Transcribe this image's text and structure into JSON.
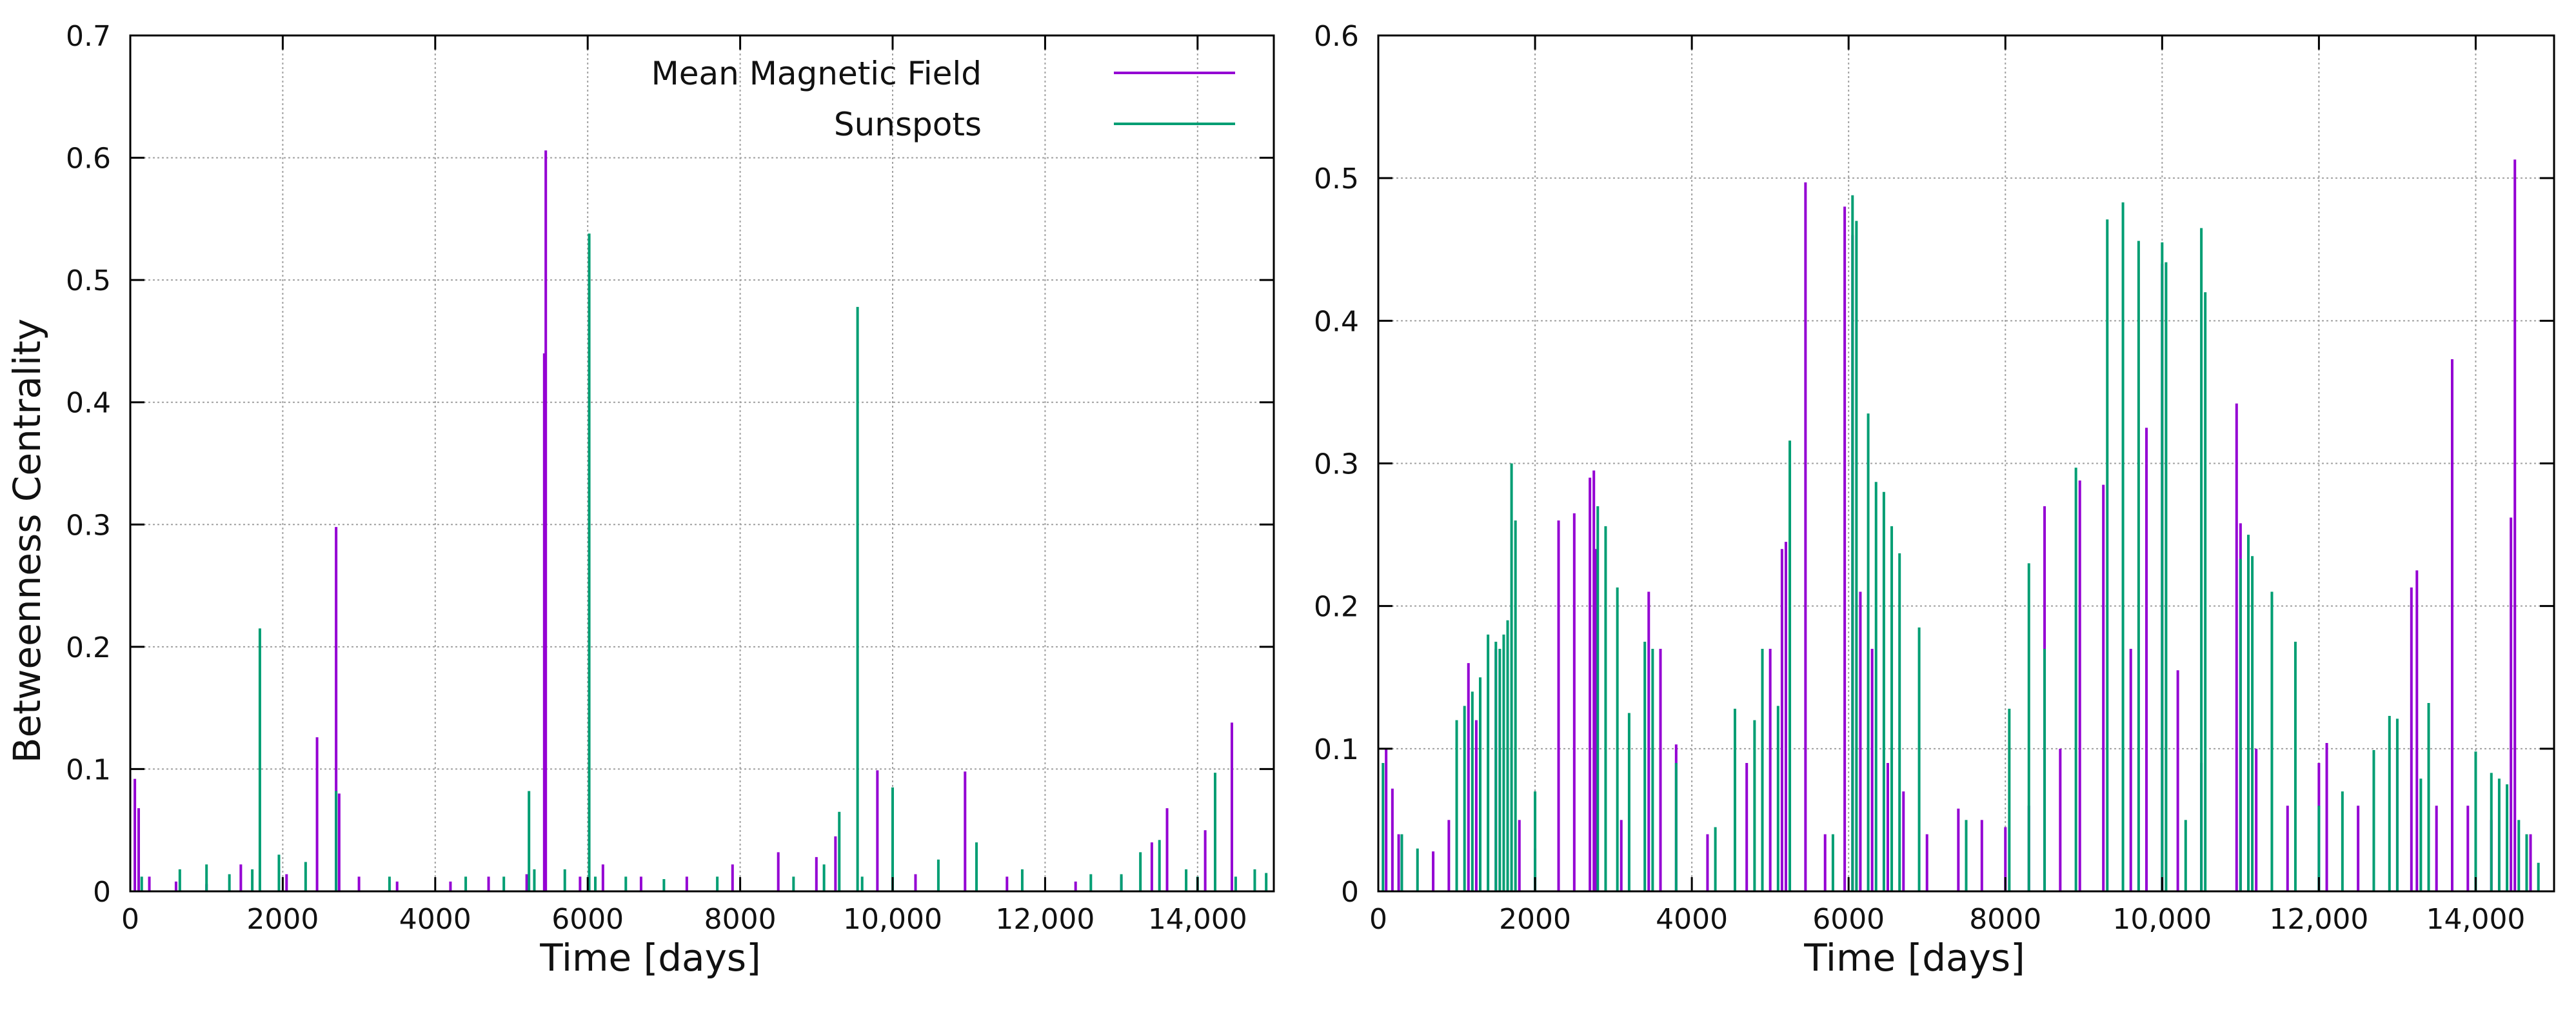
{
  "chart_data": [
    {
      "id": "left",
      "type": "bar",
      "xlabel": "Time [days]",
      "ylabel": "Betweenness Centrality",
      "xlim": [
        0,
        15000
      ],
      "ylim": [
        0,
        0.7
      ],
      "grid": true,
      "legend_position": "top-right",
      "xticks": [
        {
          "value": 0,
          "label": "0"
        },
        {
          "value": 2000,
          "label": "2000"
        },
        {
          "value": 4000,
          "label": "4000"
        },
        {
          "value": 6000,
          "label": "6000"
        },
        {
          "value": 8000,
          "label": "8000"
        },
        {
          "value": 10000,
          "label": "10,000"
        },
        {
          "value": 12000,
          "label": "12,000"
        },
        {
          "value": 14000,
          "label": "14,000"
        }
      ],
      "yticks": [
        {
          "value": 0,
          "label": "0"
        },
        {
          "value": 0.1,
          "label": "0.1"
        },
        {
          "value": 0.2,
          "label": "0.2"
        },
        {
          "value": 0.3,
          "label": "0.3"
        },
        {
          "value": 0.4,
          "label": "0.4"
        },
        {
          "value": 0.5,
          "label": "0.5"
        },
        {
          "value": 0.6,
          "label": "0.6"
        },
        {
          "value": 0.7,
          "label": "0.7"
        }
      ],
      "series": [
        {
          "name": "Mean Magnetic Field",
          "color": "#9400d3",
          "points": [
            [
              60,
              0.092
            ],
            [
              110,
              0.068
            ],
            [
              250,
              0.012
            ],
            [
              600,
              0.008
            ],
            [
              1000,
              0.006
            ],
            [
              1450,
              0.022
            ],
            [
              2050,
              0.014
            ],
            [
              2450,
              0.126
            ],
            [
              2700,
              0.298
            ],
            [
              2740,
              0.08
            ],
            [
              3000,
              0.012
            ],
            [
              3500,
              0.008
            ],
            [
              4200,
              0.008
            ],
            [
              4700,
              0.012
            ],
            [
              5200,
              0.014
            ],
            [
              5450,
              0.606
            ],
            [
              5430,
              0.44
            ],
            [
              5900,
              0.012
            ],
            [
              6200,
              0.022
            ],
            [
              6700,
              0.012
            ],
            [
              7300,
              0.012
            ],
            [
              7900,
              0.022
            ],
            [
              8500,
              0.032
            ],
            [
              9000,
              0.028
            ],
            [
              9250,
              0.045
            ],
            [
              9800,
              0.099
            ],
            [
              10300,
              0.014
            ],
            [
              10950,
              0.098
            ],
            [
              11500,
              0.012
            ],
            [
              12400,
              0.008
            ],
            [
              13000,
              0.012
            ],
            [
              13400,
              0.04
            ],
            [
              13600,
              0.068
            ],
            [
              14100,
              0.05
            ],
            [
              14450,
              0.138
            ]
          ]
        },
        {
          "name": "Sunspots",
          "color": "#009e73",
          "points": [
            [
              150,
              0.012
            ],
            [
              650,
              0.018
            ],
            [
              1000,
              0.022
            ],
            [
              1300,
              0.014
            ],
            [
              1600,
              0.018
            ],
            [
              1700,
              0.215
            ],
            [
              1950,
              0.03
            ],
            [
              2300,
              0.024
            ],
            [
              2700,
              0.082
            ],
            [
              3400,
              0.012
            ],
            [
              4400,
              0.012
            ],
            [
              4900,
              0.012
            ],
            [
              5230,
              0.082
            ],
            [
              5300,
              0.018
            ],
            [
              5700,
              0.018
            ],
            [
              6020,
              0.538
            ],
            [
              6100,
              0.012
            ],
            [
              6500,
              0.012
            ],
            [
              7000,
              0.01
            ],
            [
              7700,
              0.012
            ],
            [
              8700,
              0.012
            ],
            [
              9100,
              0.022
            ],
            [
              9300,
              0.065
            ],
            [
              9540,
              0.478
            ],
            [
              9600,
              0.012
            ],
            [
              10000,
              0.085
            ],
            [
              10600,
              0.026
            ],
            [
              11100,
              0.04
            ],
            [
              11700,
              0.018
            ],
            [
              12600,
              0.014
            ],
            [
              13000,
              0.014
            ],
            [
              13250,
              0.032
            ],
            [
              13500,
              0.042
            ],
            [
              13850,
              0.018
            ],
            [
              14000,
              0.012
            ],
            [
              14230,
              0.097
            ],
            [
              14500,
              0.012
            ],
            [
              14750,
              0.018
            ],
            [
              14900,
              0.015
            ]
          ]
        }
      ]
    },
    {
      "id": "right",
      "type": "bar",
      "xlabel": "Time [days]",
      "ylabel": "",
      "xlim": [
        0,
        15000
      ],
      "ylim": [
        0,
        0.6
      ],
      "grid": true,
      "xticks": [
        {
          "value": 0,
          "label": "0"
        },
        {
          "value": 2000,
          "label": "2000"
        },
        {
          "value": 4000,
          "label": "4000"
        },
        {
          "value": 6000,
          "label": "6000"
        },
        {
          "value": 8000,
          "label": "8000"
        },
        {
          "value": 10000,
          "label": "10,000"
        },
        {
          "value": 12000,
          "label": "12,000"
        },
        {
          "value": 14000,
          "label": "14,000"
        }
      ],
      "yticks": [
        {
          "value": 0,
          "label": "0"
        },
        {
          "value": 0.1,
          "label": "0.1"
        },
        {
          "value": 0.2,
          "label": "0.2"
        },
        {
          "value": 0.3,
          "label": "0.3"
        },
        {
          "value": 0.4,
          "label": "0.4"
        },
        {
          "value": 0.5,
          "label": "0.5"
        },
        {
          "value": 0.6,
          "label": "0.6"
        }
      ],
      "series": [
        {
          "name": "Mean Magnetic Field",
          "color": "#9400d3",
          "points": [
            [
              100,
              0.1
            ],
            [
              180,
              0.072
            ],
            [
              260,
              0.04
            ],
            [
              700,
              0.028
            ],
            [
              900,
              0.05
            ],
            [
              1150,
              0.16
            ],
            [
              1250,
              0.12
            ],
            [
              1500,
              0.17
            ],
            [
              1800,
              0.05
            ],
            [
              2000,
              0.03
            ],
            [
              2300,
              0.26
            ],
            [
              2500,
              0.265
            ],
            [
              2700,
              0.29
            ],
            [
              2750,
              0.295
            ],
            [
              2780,
              0.24
            ],
            [
              3100,
              0.05
            ],
            [
              3450,
              0.21
            ],
            [
              3600,
              0.17
            ],
            [
              3800,
              0.103
            ],
            [
              4200,
              0.04
            ],
            [
              4700,
              0.09
            ],
            [
              5000,
              0.17
            ],
            [
              5150,
              0.24
            ],
            [
              5200,
              0.245
            ],
            [
              5450,
              0.497
            ],
            [
              5700,
              0.04
            ],
            [
              5950,
              0.48
            ],
            [
              6050,
              0.46
            ],
            [
              6150,
              0.21
            ],
            [
              6300,
              0.17
            ],
            [
              6500,
              0.09
            ],
            [
              6700,
              0.07
            ],
            [
              7000,
              0.04
            ],
            [
              7400,
              0.058
            ],
            [
              7700,
              0.05
            ],
            [
              8000,
              0.045
            ],
            [
              8300,
              0.06
            ],
            [
              8500,
              0.27
            ],
            [
              8700,
              0.1
            ],
            [
              8950,
              0.288
            ],
            [
              9250,
              0.285
            ],
            [
              9600,
              0.17
            ],
            [
              9800,
              0.325
            ],
            [
              10000,
              0.44
            ],
            [
              10200,
              0.155
            ],
            [
              10500,
              0.09
            ],
            [
              10950,
              0.342
            ],
            [
              11000,
              0.258
            ],
            [
              11200,
              0.1
            ],
            [
              11600,
              0.06
            ],
            [
              12000,
              0.09
            ],
            [
              12100,
              0.104
            ],
            [
              12500,
              0.06
            ],
            [
              13000,
              0.1
            ],
            [
              13180,
              0.213
            ],
            [
              13250,
              0.225
            ],
            [
              13500,
              0.06
            ],
            [
              13700,
              0.373
            ],
            [
              13900,
              0.06
            ],
            [
              14200,
              0.05
            ],
            [
              14450,
              0.262
            ],
            [
              14500,
              0.513
            ],
            [
              14700,
              0.04
            ]
          ]
        },
        {
          "name": "Sunspots",
          "color": "#009e73",
          "points": [
            [
              60,
              0.09
            ],
            [
              300,
              0.04
            ],
            [
              500,
              0.03
            ],
            [
              1000,
              0.12
            ],
            [
              1100,
              0.13
            ],
            [
              1200,
              0.14
            ],
            [
              1300,
              0.15
            ],
            [
              1400,
              0.18
            ],
            [
              1500,
              0.175
            ],
            [
              1550,
              0.17
            ],
            [
              1600,
              0.18
            ],
            [
              1650,
              0.19
            ],
            [
              1700,
              0.3
            ],
            [
              1750,
              0.26
            ],
            [
              2000,
              0.07
            ],
            [
              2800,
              0.27
            ],
            [
              2900,
              0.256
            ],
            [
              3050,
              0.213
            ],
            [
              3200,
              0.125
            ],
            [
              3400,
              0.175
            ],
            [
              3500,
              0.17
            ],
            [
              3800,
              0.09
            ],
            [
              4300,
              0.045
            ],
            [
              4550,
              0.128
            ],
            [
              4800,
              0.12
            ],
            [
              4900,
              0.17
            ],
            [
              5100,
              0.13
            ],
            [
              5250,
              0.316
            ],
            [
              5800,
              0.04
            ],
            [
              6050,
              0.488
            ],
            [
              6100,
              0.47
            ],
            [
              6250,
              0.335
            ],
            [
              6350,
              0.287
            ],
            [
              6450,
              0.28
            ],
            [
              6550,
              0.256
            ],
            [
              6650,
              0.237
            ],
            [
              6900,
              0.185
            ],
            [
              7500,
              0.05
            ],
            [
              8050,
              0.128
            ],
            [
              8300,
              0.23
            ],
            [
              8500,
              0.17
            ],
            [
              8900,
              0.297
            ],
            [
              9300,
              0.471
            ],
            [
              9500,
              0.483
            ],
            [
              9700,
              0.456
            ],
            [
              10000,
              0.455
            ],
            [
              10050,
              0.441
            ],
            [
              10300,
              0.05
            ],
            [
              10500,
              0.465
            ],
            [
              10550,
              0.42
            ],
            [
              11000,
              0.233
            ],
            [
              11100,
              0.25
            ],
            [
              11150,
              0.235
            ],
            [
              11400,
              0.21
            ],
            [
              11700,
              0.175
            ],
            [
              12000,
              0.06
            ],
            [
              12300,
              0.07
            ],
            [
              12700,
              0.099
            ],
            [
              12900,
              0.123
            ],
            [
              13000,
              0.121
            ],
            [
              13300,
              0.079
            ],
            [
              13400,
              0.132
            ],
            [
              14000,
              0.098
            ],
            [
              14200,
              0.083
            ],
            [
              14300,
              0.079
            ],
            [
              14400,
              0.075
            ],
            [
              14550,
              0.05
            ],
            [
              14650,
              0.04
            ],
            [
              14800,
              0.02
            ]
          ]
        }
      ]
    }
  ]
}
